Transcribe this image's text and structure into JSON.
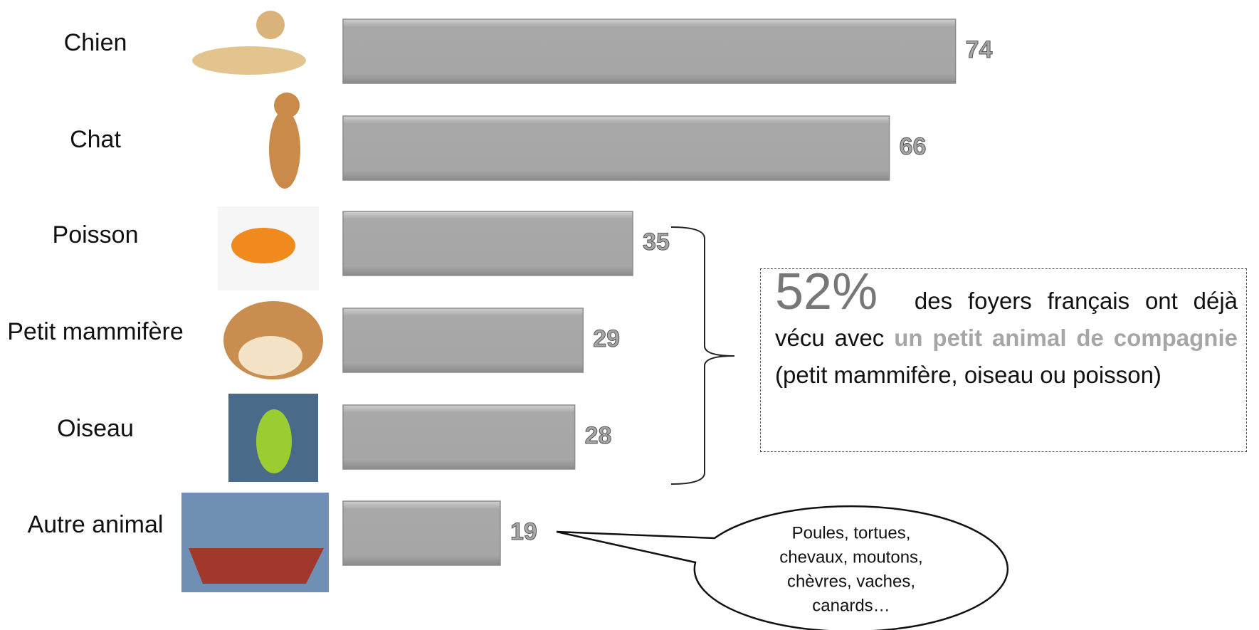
{
  "chart_data": {
    "type": "bar",
    "orientation": "horizontal",
    "categories": [
      "Chien",
      "Chat",
      "Poisson",
      "Petit mammifère",
      "Oiseau",
      "Autre animal"
    ],
    "values": [
      74,
      66,
      35,
      29,
      28,
      19
    ],
    "color": "#a6a6a6",
    "annotation": {
      "figure": "52%",
      "text": "des foyers français ont déjà vécu avec",
      "highlight": "un petit animal de compagnie",
      "text_after": "(petit mammifère, oiseau ou poisson)"
    },
    "callout": [
      "Poules, tortues,",
      "chevaux, moutons,",
      "chèvres, vaches,",
      "canards…"
    ]
  }
}
